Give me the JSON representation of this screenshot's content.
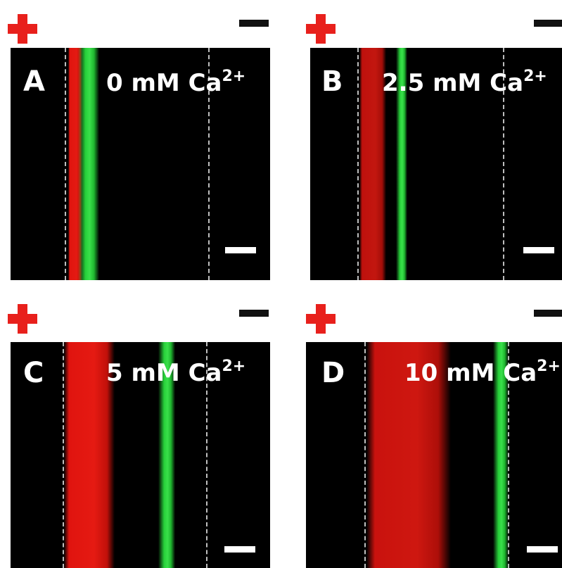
{
  "panels": [
    {
      "letter": "A",
      "conc": "0 mM Ca",
      "sup": "2+"
    },
    {
      "letter": "B",
      "conc": "2.5 mM Ca",
      "sup": "2+"
    },
    {
      "letter": "C",
      "conc": "5 mM Ca",
      "sup": "2+"
    },
    {
      "letter": "D",
      "conc": "10 mM Ca",
      "sup": "2+"
    }
  ],
  "colors": {
    "plus": "#e8201c",
    "minus": "#111111",
    "red_band": "#e51a12",
    "green_band": "#39e04a"
  }
}
